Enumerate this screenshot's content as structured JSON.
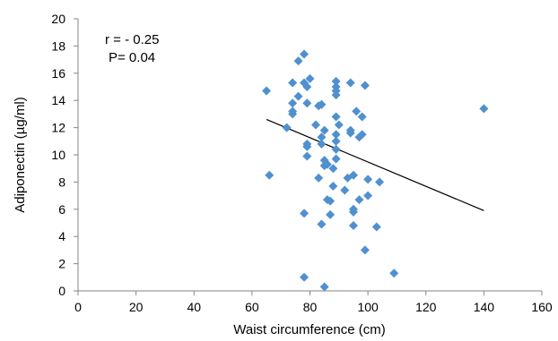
{
  "chart_data": {
    "type": "scatter",
    "title": "",
    "xlabel": "Waist circumference (cm)",
    "ylabel": "Adiponectin (µg/ml)",
    "xlim": [
      0,
      160
    ],
    "ylim": [
      0,
      20
    ],
    "xticks": [
      0,
      20,
      40,
      60,
      80,
      100,
      120,
      140,
      160
    ],
    "yticks": [
      0,
      2,
      4,
      6,
      8,
      10,
      12,
      14,
      16,
      18,
      20
    ],
    "grid": false,
    "legend": "none",
    "marker": "diamond",
    "marker_color": "#4f90d0",
    "annotations": [
      "r = - 0.25",
      "P= 0.04"
    ],
    "points": [
      {
        "x": 65,
        "y": 14.7
      },
      {
        "x": 66,
        "y": 8.5
      },
      {
        "x": 72,
        "y": 12.0
      },
      {
        "x": 74,
        "y": 15.3
      },
      {
        "x": 74,
        "y": 13.8
      },
      {
        "x": 74,
        "y": 13.2
      },
      {
        "x": 74,
        "y": 13.0
      },
      {
        "x": 76,
        "y": 16.9
      },
      {
        "x": 76,
        "y": 14.3
      },
      {
        "x": 78,
        "y": 17.4
      },
      {
        "x": 78,
        "y": 15.3
      },
      {
        "x": 78,
        "y": 5.7
      },
      {
        "x": 78,
        "y": 1.0
      },
      {
        "x": 79,
        "y": 15.0
      },
      {
        "x": 79,
        "y": 13.8
      },
      {
        "x": 79,
        "y": 10.8
      },
      {
        "x": 79,
        "y": 10.6
      },
      {
        "x": 79,
        "y": 9.9
      },
      {
        "x": 80,
        "y": 15.6
      },
      {
        "x": 82,
        "y": 12.2
      },
      {
        "x": 83,
        "y": 13.6
      },
      {
        "x": 83,
        "y": 8.3
      },
      {
        "x": 84,
        "y": 13.7
      },
      {
        "x": 84,
        "y": 11.3
      },
      {
        "x": 84,
        "y": 10.8
      },
      {
        "x": 84,
        "y": 4.9
      },
      {
        "x": 85,
        "y": 11.8
      },
      {
        "x": 85,
        "y": 9.6
      },
      {
        "x": 85,
        "y": 9.2
      },
      {
        "x": 85,
        "y": 0.3
      },
      {
        "x": 86,
        "y": 9.3
      },
      {
        "x": 86,
        "y": 6.7
      },
      {
        "x": 87,
        "y": 6.6
      },
      {
        "x": 87,
        "y": 5.6
      },
      {
        "x": 88,
        "y": 9.0
      },
      {
        "x": 88,
        "y": 7.7
      },
      {
        "x": 89,
        "y": 15.4
      },
      {
        "x": 89,
        "y": 15.0
      },
      {
        "x": 89,
        "y": 14.7
      },
      {
        "x": 89,
        "y": 14.4
      },
      {
        "x": 89,
        "y": 12.8
      },
      {
        "x": 89,
        "y": 11.5
      },
      {
        "x": 89,
        "y": 11.0
      },
      {
        "x": 89,
        "y": 10.4
      },
      {
        "x": 89,
        "y": 9.7
      },
      {
        "x": 90,
        "y": 12.2
      },
      {
        "x": 92,
        "y": 7.4
      },
      {
        "x": 93,
        "y": 8.3
      },
      {
        "x": 94,
        "y": 15.3
      },
      {
        "x": 94,
        "y": 11.8
      },
      {
        "x": 94,
        "y": 11.6
      },
      {
        "x": 95,
        "y": 8.5
      },
      {
        "x": 95,
        "y": 6.0
      },
      {
        "x": 95,
        "y": 5.8
      },
      {
        "x": 95,
        "y": 4.8
      },
      {
        "x": 96,
        "y": 13.2
      },
      {
        "x": 97,
        "y": 11.3
      },
      {
        "x": 97,
        "y": 6.7
      },
      {
        "x": 98,
        "y": 12.8
      },
      {
        "x": 98,
        "y": 11.5
      },
      {
        "x": 99,
        "y": 15.1
      },
      {
        "x": 99,
        "y": 3.0
      },
      {
        "x": 100,
        "y": 8.2
      },
      {
        "x": 100,
        "y": 7.0
      },
      {
        "x": 103,
        "y": 4.7
      },
      {
        "x": 104,
        "y": 8.0
      },
      {
        "x": 109,
        "y": 1.3
      },
      {
        "x": 140,
        "y": 13.4
      }
    ],
    "trendline": {
      "x": [
        65,
        140
      ],
      "y": [
        12.6,
        5.9
      ]
    }
  }
}
